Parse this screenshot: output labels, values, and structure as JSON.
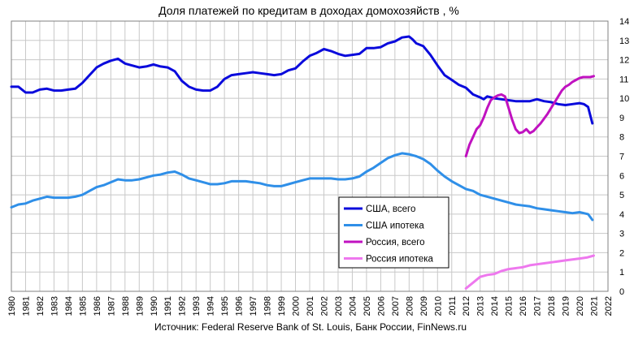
{
  "chart_data": {
    "type": "line",
    "title": "Доля платежей по кредитам в доходах домохозяйств , %",
    "source": "Источник: Federal Reserve Bank of St. Louis, Банк России, FinNews.ru",
    "xlim": [
      1980,
      2022
    ],
    "ylim": [
      0,
      14
    ],
    "x_ticks": [
      "1980",
      "1981",
      "1982",
      "1983",
      "1984",
      "1985",
      "1986",
      "1987",
      "1988",
      "1989",
      "1990",
      "1991",
      "1992",
      "1993",
      "1994",
      "1995",
      "1996",
      "1997",
      "1998",
      "1999",
      "2000",
      "2001",
      "2002",
      "2003",
      "2004",
      "2005",
      "2006",
      "2007",
      "2008",
      "2009",
      "2010",
      "2011",
      "2012",
      "2013",
      "2014",
      "2015",
      "2016",
      "2017",
      "2018",
      "2019",
      "2020",
      "2021",
      "2022"
    ],
    "y_ticks": [
      "0",
      "1",
      "2",
      "3",
      "4",
      "5",
      "6",
      "7",
      "8",
      "9",
      "10",
      "11",
      "12",
      "13",
      "14"
    ],
    "y_axis_side": "right",
    "grid": true,
    "legend_position": "center-right",
    "series": [
      {
        "name": "США, всего",
        "color": "#0a0adc",
        "x": [
          1980,
          1980.5,
          1981,
          1981.5,
          1982,
          1982.5,
          1983,
          1983.5,
          1984,
          1984.5,
          1985,
          1985.5,
          1986,
          1986.5,
          1987,
          1987.5,
          1988,
          1988.5,
          1989,
          1989.5,
          1990,
          1990.5,
          1991,
          1991.5,
          1992,
          1992.5,
          1993,
          1993.5,
          1994,
          1994.5,
          1995,
          1995.5,
          1996,
          1996.5,
          1997,
          1997.5,
          1998,
          1998.5,
          1999,
          1999.5,
          2000,
          2000.5,
          2001,
          2001.5,
          2002,
          2002.5,
          2003,
          2003.5,
          2004,
          2004.5,
          2005,
          2005.5,
          2006,
          2006.5,
          2007,
          2007.5,
          2008,
          2008.25,
          2008.5,
          2009,
          2009.5,
          2010,
          2010.5,
          2011,
          2011.5,
          2012,
          2012.5,
          2013,
          2013.25,
          2013.5,
          2014,
          2014.5,
          2015,
          2015.5,
          2016,
          2016.5,
          2017,
          2017.5,
          2018,
          2018.5,
          2019,
          2019.5,
          2020,
          2020.3,
          2020.6,
          2020.9
        ],
        "y": [
          10.6,
          10.6,
          10.3,
          10.3,
          10.45,
          10.5,
          10.4,
          10.4,
          10.45,
          10.5,
          10.8,
          11.2,
          11.6,
          11.8,
          11.95,
          12.05,
          11.8,
          11.7,
          11.6,
          11.65,
          11.75,
          11.65,
          11.6,
          11.4,
          10.9,
          10.6,
          10.45,
          10.4,
          10.4,
          10.6,
          11.0,
          11.2,
          11.25,
          11.3,
          11.35,
          11.3,
          11.25,
          11.2,
          11.25,
          11.45,
          11.55,
          11.9,
          12.2,
          12.35,
          12.55,
          12.45,
          12.3,
          12.2,
          12.25,
          12.3,
          12.6,
          12.6,
          12.65,
          12.85,
          12.95,
          13.15,
          13.2,
          13.05,
          12.85,
          12.7,
          12.25,
          11.7,
          11.2,
          10.95,
          10.7,
          10.55,
          10.2,
          10.05,
          9.95,
          10.1,
          10.0,
          9.95,
          9.9,
          9.85,
          9.85,
          9.85,
          9.95,
          9.85,
          9.8,
          9.7,
          9.65,
          9.7,
          9.75,
          9.7,
          9.55,
          8.7
        ]
      },
      {
        "name": "США ипотека",
        "color": "#2f8fe8",
        "x": [
          1980,
          1980.5,
          1981,
          1981.5,
          1982,
          1982.5,
          1983,
          1983.5,
          1984,
          1984.5,
          1985,
          1985.5,
          1986,
          1986.5,
          1987,
          1987.5,
          1988,
          1988.5,
          1989,
          1989.5,
          1990,
          1990.5,
          1991,
          1991.5,
          1992,
          1992.5,
          1993,
          1993.5,
          1994,
          1994.5,
          1995,
          1995.5,
          1996,
          1996.5,
          1997,
          1997.5,
          1998,
          1998.5,
          1999,
          1999.5,
          2000,
          2000.5,
          2001,
          2001.5,
          2002,
          2002.5,
          2003,
          2003.5,
          2004,
          2004.5,
          2005,
          2005.5,
          2006,
          2006.5,
          2007,
          2007.5,
          2008,
          2008.5,
          2009,
          2009.5,
          2010,
          2010.5,
          2011,
          2011.5,
          2012,
          2012.5,
          2013,
          2013.5,
          2014,
          2014.5,
          2015,
          2015.5,
          2016,
          2016.5,
          2017,
          2017.5,
          2018,
          2018.5,
          2019,
          2019.5,
          2020,
          2020.3,
          2020.6,
          2020.9
        ],
        "y": [
          4.35,
          4.5,
          4.55,
          4.7,
          4.8,
          4.9,
          4.85,
          4.85,
          4.85,
          4.9,
          5.0,
          5.2,
          5.4,
          5.5,
          5.65,
          5.8,
          5.75,
          5.75,
          5.8,
          5.9,
          6.0,
          6.05,
          6.15,
          6.2,
          6.05,
          5.85,
          5.75,
          5.65,
          5.55,
          5.55,
          5.6,
          5.7,
          5.7,
          5.7,
          5.65,
          5.6,
          5.5,
          5.45,
          5.45,
          5.55,
          5.65,
          5.75,
          5.85,
          5.85,
          5.85,
          5.85,
          5.8,
          5.8,
          5.85,
          5.95,
          6.2,
          6.4,
          6.65,
          6.9,
          7.05,
          7.15,
          7.1,
          7.0,
          6.85,
          6.6,
          6.25,
          5.95,
          5.7,
          5.5,
          5.3,
          5.2,
          5.0,
          4.9,
          4.8,
          4.7,
          4.6,
          4.5,
          4.45,
          4.4,
          4.3,
          4.25,
          4.2,
          4.15,
          4.1,
          4.05,
          4.1,
          4.05,
          4.0,
          3.7
        ]
      },
      {
        "name": "Россия, всего",
        "color": "#c012c0",
        "x": [
          2012,
          2012.25,
          2012.5,
          2012.75,
          2013,
          2013.25,
          2013.5,
          2013.75,
          2014,
          2014.25,
          2014.5,
          2014.75,
          2015,
          2015.25,
          2015.5,
          2015.75,
          2016,
          2016.25,
          2016.5,
          2016.75,
          2017,
          2017.25,
          2017.5,
          2017.75,
          2018,
          2018.25,
          2018.5,
          2018.75,
          2019,
          2019.25,
          2019.5,
          2019.75,
          2020,
          2020.25,
          2020.5,
          2020.75,
          2021
        ],
        "y": [
          7.0,
          7.6,
          8.0,
          8.4,
          8.6,
          9.0,
          9.5,
          9.9,
          10.05,
          10.15,
          10.2,
          10.1,
          9.5,
          8.9,
          8.4,
          8.2,
          8.25,
          8.4,
          8.2,
          8.3,
          8.5,
          8.7,
          8.95,
          9.2,
          9.5,
          9.8,
          10.1,
          10.4,
          10.6,
          10.7,
          10.85,
          10.95,
          11.05,
          11.1,
          11.1,
          11.1,
          11.15
        ]
      },
      {
        "name": "Россия ипотека",
        "color": "#ee78ee",
        "x": [
          2012,
          2012.5,
          2013,
          2013.5,
          2014,
          2014.5,
          2015,
          2015.5,
          2016,
          2016.5,
          2017,
          2017.5,
          2018,
          2018.5,
          2019,
          2019.5,
          2020,
          2020.5,
          2021
        ],
        "y": [
          0.15,
          0.45,
          0.75,
          0.85,
          0.9,
          1.05,
          1.15,
          1.2,
          1.25,
          1.35,
          1.4,
          1.45,
          1.5,
          1.55,
          1.6,
          1.65,
          1.7,
          1.75,
          1.85
        ]
      }
    ]
  }
}
